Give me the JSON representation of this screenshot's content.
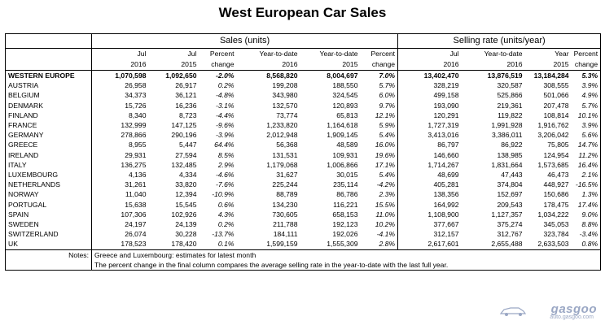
{
  "title": "West European Car Sales",
  "groups": {
    "sales": "Sales (units)",
    "rate": "Selling rate (units/year)"
  },
  "headers": {
    "row1": [
      "Jul",
      "Jul",
      "Percent",
      "Year-to-date",
      "Year-to-date",
      "Percent",
      "Jul",
      "Year-to-date",
      "Year",
      "Percent"
    ],
    "row2": [
      "2016",
      "2015",
      "change",
      "2016",
      "2015",
      "change",
      "2016",
      "2016",
      "2015",
      "change"
    ]
  },
  "rows": [
    {
      "country": "WESTERN EUROPE",
      "v": [
        "1,070,598",
        "1,092,650",
        "-2.0%",
        "8,568,820",
        "8,004,697",
        "7.0%",
        "13,402,470",
        "13,876,519",
        "13,184,284",
        "5.3%"
      ]
    },
    {
      "country": "AUSTRIA",
      "v": [
        "26,958",
        "26,917",
        "0.2%",
        "199,208",
        "188,550",
        "5.7%",
        "328,219",
        "320,587",
        "308,555",
        "3.9%"
      ]
    },
    {
      "country": "BELGIUM",
      "v": [
        "34,373",
        "36,121",
        "-4.8%",
        "343,980",
        "324,545",
        "6.0%",
        "499,158",
        "525,866",
        "501,066",
        "4.9%"
      ]
    },
    {
      "country": "DENMARK",
      "v": [
        "15,726",
        "16,236",
        "-3.1%",
        "132,570",
        "120,893",
        "9.7%",
        "193,090",
        "219,361",
        "207,478",
        "5.7%"
      ]
    },
    {
      "country": "FINLAND",
      "v": [
        "8,340",
        "8,723",
        "-4.4%",
        "73,774",
        "65,813",
        "12.1%",
        "120,291",
        "119,822",
        "108,814",
        "10.1%"
      ]
    },
    {
      "country": "FRANCE",
      "v": [
        "132,999",
        "147,125",
        "-9.6%",
        "1,233,820",
        "1,164,618",
        "5.9%",
        "1,727,319",
        "1,991,928",
        "1,916,762",
        "3.9%"
      ]
    },
    {
      "country": "GERMANY",
      "v": [
        "278,866",
        "290,196",
        "-3.9%",
        "2,012,948",
        "1,909,145",
        "5.4%",
        "3,413,016",
        "3,386,011",
        "3,206,042",
        "5.6%"
      ]
    },
    {
      "country": "GREECE",
      "v": [
        "8,955",
        "5,447",
        "64.4%",
        "56,368",
        "48,589",
        "16.0%",
        "86,797",
        "86,922",
        "75,805",
        "14.7%"
      ]
    },
    {
      "country": "IRELAND",
      "v": [
        "29,931",
        "27,594",
        "8.5%",
        "131,531",
        "109,931",
        "19.6%",
        "146,660",
        "138,985",
        "124,954",
        "11.2%"
      ]
    },
    {
      "country": "ITALY",
      "v": [
        "136,275",
        "132,485",
        "2.9%",
        "1,179,068",
        "1,006,866",
        "17.1%",
        "1,714,267",
        "1,831,664",
        "1,573,685",
        "16.4%"
      ]
    },
    {
      "country": "LUXEMBOURG",
      "v": [
        "4,136",
        "4,334",
        "-4.6%",
        "31,627",
        "30,015",
        "5.4%",
        "48,699",
        "47,443",
        "46,473",
        "2.1%"
      ]
    },
    {
      "country": "NETHERLANDS",
      "v": [
        "31,261",
        "33,820",
        "-7.6%",
        "225,244",
        "235,114",
        "-4.2%",
        "405,281",
        "374,804",
        "448,927",
        "-16.5%"
      ]
    },
    {
      "country": "NORWAY",
      "v": [
        "11,040",
        "12,394",
        "-10.9%",
        "88,789",
        "86,786",
        "2.3%",
        "138,356",
        "152,697",
        "150,686",
        "1.3%"
      ]
    },
    {
      "country": "PORTUGAL",
      "v": [
        "15,638",
        "15,545",
        "0.6%",
        "134,230",
        "116,221",
        "15.5%",
        "164,992",
        "209,543",
        "178,475",
        "17.4%"
      ]
    },
    {
      "country": "SPAIN",
      "v": [
        "107,306",
        "102,926",
        "4.3%",
        "730,605",
        "658,153",
        "11.0%",
        "1,108,900",
        "1,127,357",
        "1,034,222",
        "9.0%"
      ]
    },
    {
      "country": "SWEDEN",
      "v": [
        "24,197",
        "24,139",
        "0.2%",
        "211,788",
        "192,123",
        "10.2%",
        "377,667",
        "375,274",
        "345,053",
        "8.8%"
      ]
    },
    {
      "country": "SWITZERLAND",
      "v": [
        "26,074",
        "30,228",
        "-13.7%",
        "184,111",
        "192,026",
        "-4.1%",
        "312,157",
        "312,767",
        "323,784",
        "-3.4%"
      ]
    },
    {
      "country": "UK",
      "v": [
        "178,523",
        "178,420",
        "0.1%",
        "1,599,159",
        "1,555,309",
        "2.8%",
        "2,617,601",
        "2,655,488",
        "2,633,503",
        "0.8%"
      ]
    }
  ],
  "notes": {
    "label": "Notes:",
    "line1": "Greece and Luxembourg: estimates for latest month",
    "line2": "The percent change in the final column compares the average selling rate in the year-to-date with the last full year."
  },
  "watermark": {
    "logo": "gasgoo",
    "url": "auto.gasgoo.com",
    "color": "#9aa7c4"
  }
}
